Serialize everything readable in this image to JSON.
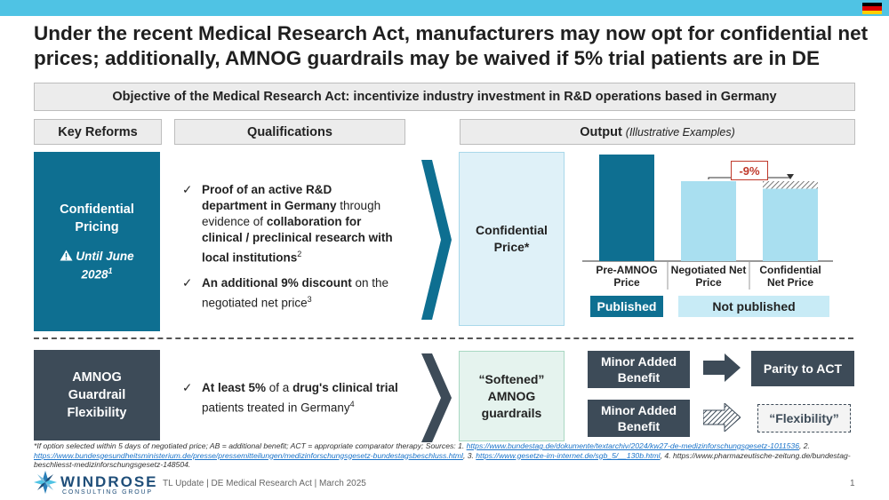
{
  "title": "Under the recent Medical Research Act, manufacturers may now opt for confidential net prices; additionally, AMNOG guardrails may be waived if 5% trial patients are in DE",
  "objective": "Objective of the Medical Research Act: incentivize industry investment in R&D operations based in Germany",
  "headers": {
    "key_reforms": "Key Reforms",
    "qualifications": "Qualifications",
    "output": "Output",
    "output_note": "(Illustrative Examples)"
  },
  "reform1": {
    "line1": "Confidential",
    "line2": "Pricing",
    "warning_icon": "warning-icon",
    "until_line1": "Until June",
    "until_line2": "2028",
    "until_sup": "1"
  },
  "reform2": {
    "line1": "AMNOG",
    "line2": "Guardrail",
    "line3": "Flexibility"
  },
  "qual1": {
    "check": "✓",
    "a_bold": "Proof of an active R&D department in Germany",
    "a_rest1": " through evidence of ",
    "a_bold2": "collaboration for clinical / preclinical research with local institutions",
    "a_sup": "2",
    "b_bold": "An additional 9% discount",
    "b_rest": " on the negotiated net price",
    "b_sup": "3"
  },
  "qual2": {
    "check": "✓",
    "a_bold": "At least 5%",
    "a_rest1": " of a ",
    "a_bold2": "drug's clinical trial",
    "a_rest2": " patients treated in Germany",
    "a_sup": "4"
  },
  "out1": {
    "line1": "Confidential",
    "line2": "Price*"
  },
  "out2": {
    "line1": "“Softened”",
    "line2": "AMNOG",
    "line3": "guardrails"
  },
  "chart_data": {
    "type": "bar",
    "categories": [
      "Pre-AMNOG Price",
      "Negotiated Net Price",
      "Confidential Net Price"
    ],
    "category_lines": [
      [
        "Pre-AMNOG",
        "Price"
      ],
      [
        "Negotiated Net",
        "Price"
      ],
      [
        "Confidential",
        "Net Price"
      ]
    ],
    "values": [
      100,
      75,
      68
    ],
    "annotation": "-9%",
    "colors": [
      "#0e6f91",
      "#a9dff0",
      "#a9dff0"
    ],
    "published_label": "Published",
    "not_published_label": "Not published"
  },
  "flow": {
    "mab1": "Minor Added Benefit",
    "mab2": "Minor Added Benefit",
    "parity": "Parity to ACT",
    "flexibility": "“Flexibility”"
  },
  "footnote": {
    "text1": "*If option selected within 5 days of negotiated price; AB = additional benefit; ACT = appropriate comparator therapy;  Sources: 1. ",
    "link1": "https://www.bundestag.de/dokumente/textarchiv/2024/kw27-de-medizinforschungsgesetz-1011536",
    "text2": ", 2. ",
    "link2": "https://www.bundesgesundheitsministerium.de/presse/pressemitteilungen/medizinforschungsgesetz-bundestagsbeschluss.html",
    "text3": ", 3. ",
    "link3": "https://www.gesetze-im-internet.de/sgb_5/__130b.html",
    "text4": ", 4. https://www.pharmazeutische-zeitung.de/bundestag-beschliesst-medizinforschungsgesetz-148504."
  },
  "logo": {
    "name": "WINDROSE",
    "sub": "CONSULTING GROUP",
    "icon": "windrose-logo-icon"
  },
  "footer": "TL Update  |  DE Medical Research Act  |  March 2025",
  "page_number": "1",
  "colors": {
    "accent": "#0e6f91",
    "dark": "#3d4b58",
    "light_blue": "#a9dff0",
    "topbar": "#4fc3e4",
    "red": "#c0392b"
  }
}
